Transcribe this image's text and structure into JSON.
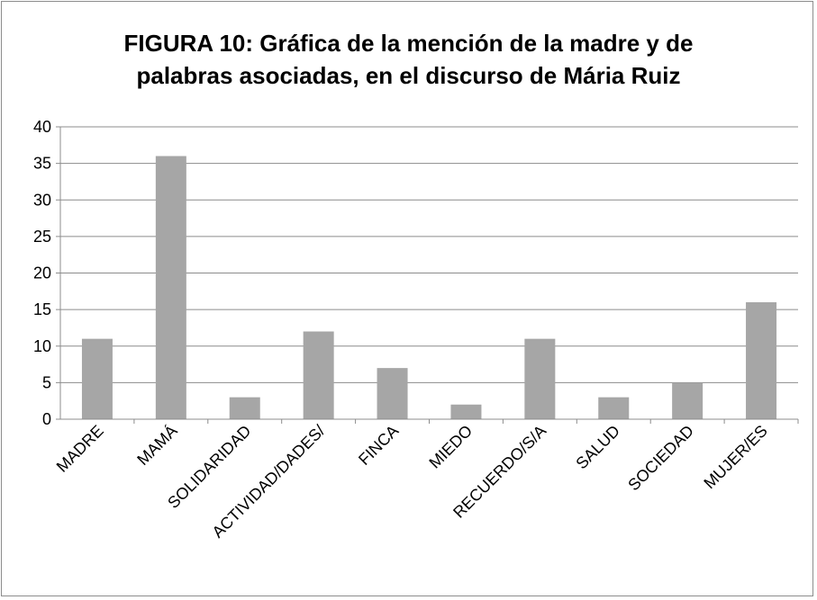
{
  "chart_data": {
    "type": "bar",
    "title": "FIGURA 10: Gráfica de la mención de la madre y de palabras asociadas, en el discurso de Mária Ruiz",
    "categories": [
      "MADRE",
      "MAMÁ",
      "SOLIDARIDAD",
      "ACTIVIDAD/DADES/",
      "FINCA",
      "MIEDO",
      "RECUERDO/S/A",
      "SALUD",
      "SOCIEDAD",
      "MUJER/ES"
    ],
    "values": [
      11,
      36,
      3,
      12,
      7,
      2,
      11,
      3,
      5,
      16
    ],
    "color": "#a6a6a6",
    "ylim": [
      0,
      40
    ],
    "yticks": [
      0,
      5,
      10,
      15,
      20,
      25,
      30,
      35,
      40
    ],
    "grid": true
  }
}
